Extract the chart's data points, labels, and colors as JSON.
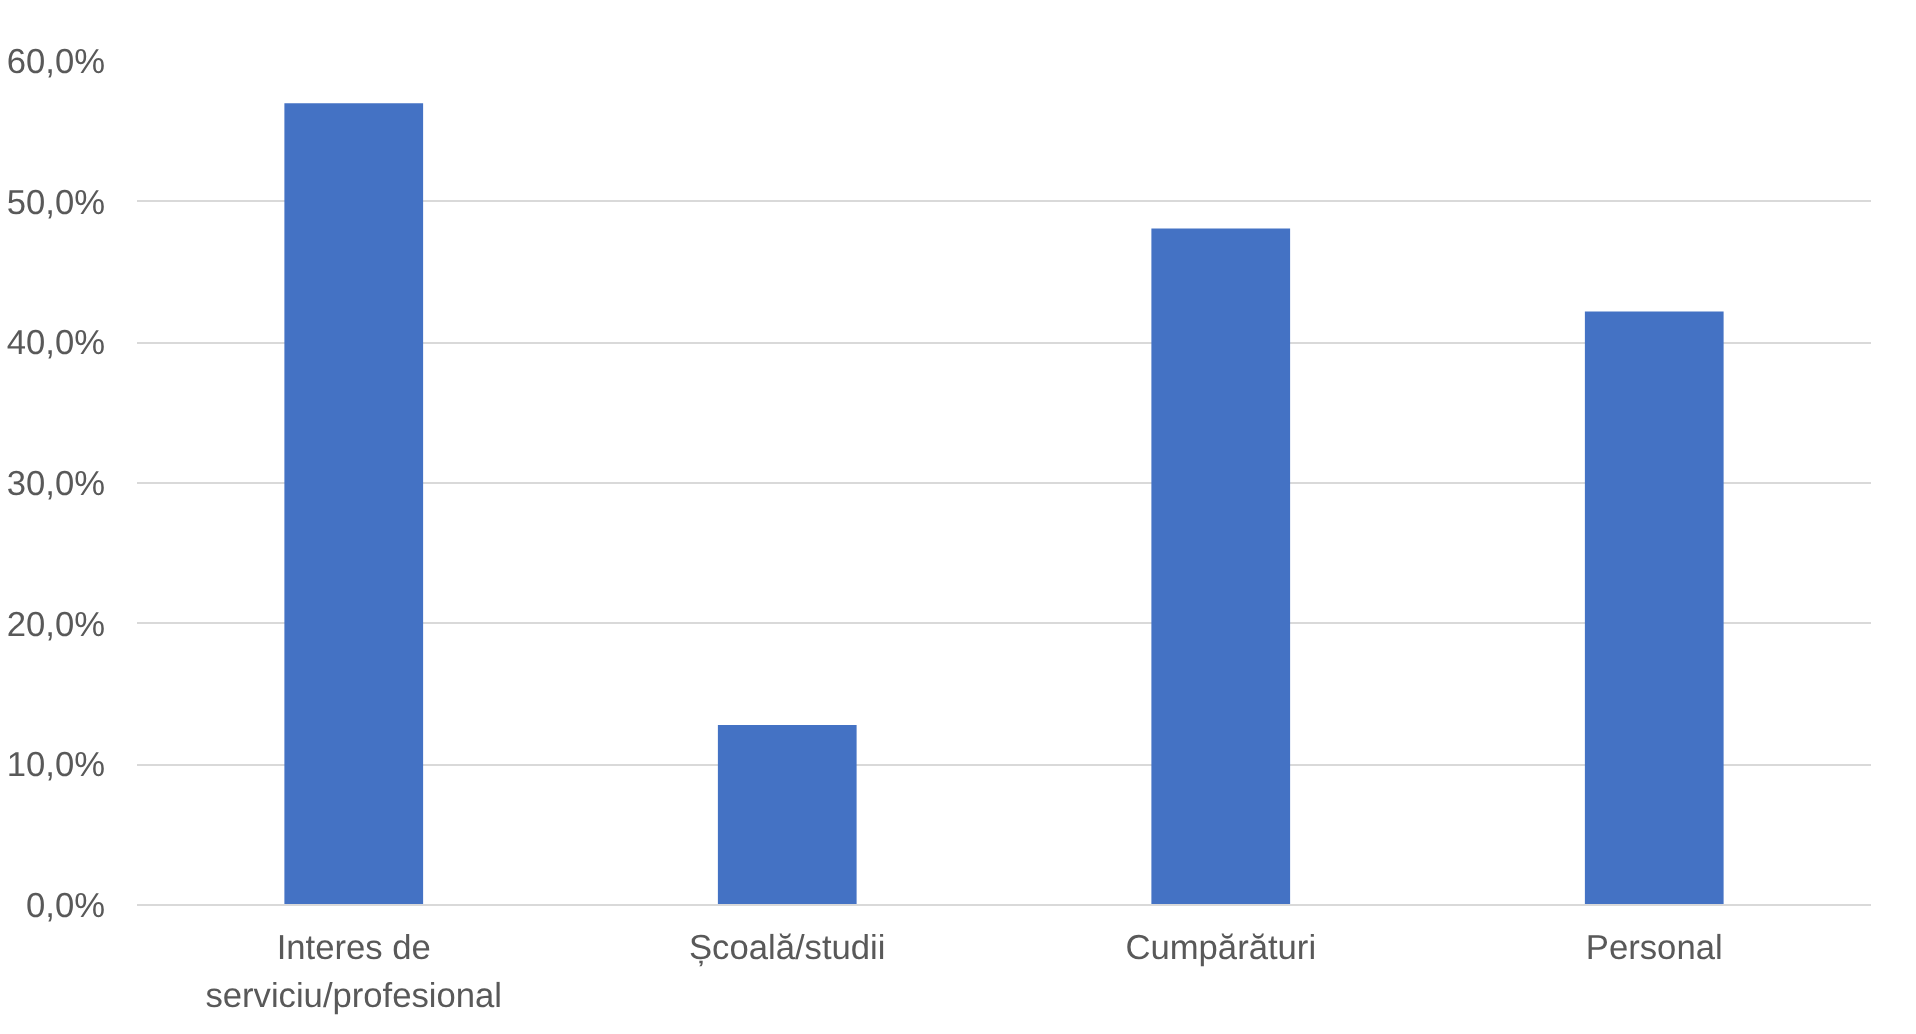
{
  "chart_data": {
    "type": "bar",
    "categories": [
      "Interes de serviciu/profesional",
      "Școală/studii",
      "Cumpărături",
      "Personal"
    ],
    "values": [
      57.0,
      12.8,
      48.1,
      42.2
    ],
    "color": "#4472c4",
    "ylim": [
      0,
      60
    ],
    "yticks": [
      {
        "value": 0,
        "label": "0,0%"
      },
      {
        "value": 10,
        "label": "10,0%"
      },
      {
        "value": 20,
        "label": "20,0%"
      },
      {
        "value": 30,
        "label": "30,0%"
      },
      {
        "value": 40,
        "label": "40,0%"
      },
      {
        "value": 50,
        "label": "50,0%"
      },
      {
        "value": 60,
        "label": "60,0%"
      }
    ],
    "grid": "y"
  }
}
